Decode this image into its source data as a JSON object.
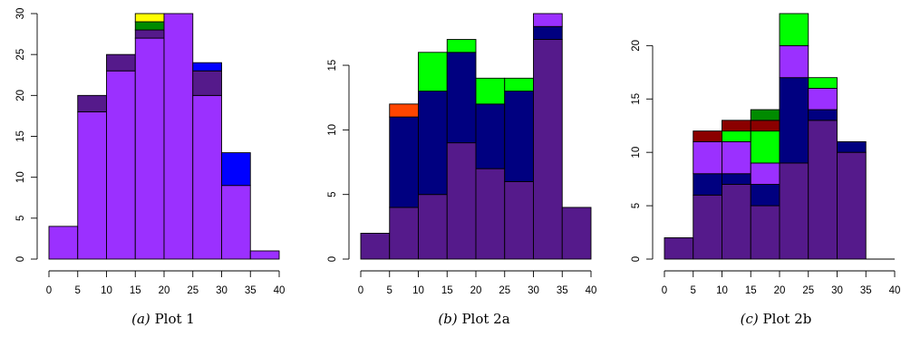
{
  "colors": {
    "purple": "#9B30FF",
    "indigo": "#551A8B",
    "blue": "#0000FF",
    "navy": "#000080",
    "green": "#00FF00",
    "darkgreen": "#008B00",
    "yellow": "#FFFF00",
    "orangered": "#FF4500",
    "darkred": "#8B0000",
    "axis": "#000000"
  },
  "chart_data": [
    {
      "type": "bar",
      "stacked": true,
      "caption_label": "(a)",
      "caption_text": "Plot 1",
      "x_ticks": [
        "0",
        "5",
        "10",
        "15",
        "20",
        "25",
        "30",
        "35",
        "40"
      ],
      "y_ticks": [
        "0",
        "5",
        "10",
        "15",
        "20",
        "25",
        "30"
      ],
      "xlim": [
        0,
        40
      ],
      "ylim": [
        0,
        30
      ],
      "bins": [
        {
          "x0": 0,
          "x1": 5,
          "segments": [
            {
              "value": 4,
              "color": "purple"
            }
          ]
        },
        {
          "x0": 5,
          "x1": 10,
          "segments": [
            {
              "value": 18,
              "color": "purple"
            },
            {
              "value": 2,
              "color": "indigo"
            }
          ]
        },
        {
          "x0": 10,
          "x1": 15,
          "segments": [
            {
              "value": 23,
              "color": "purple"
            },
            {
              "value": 2,
              "color": "indigo"
            }
          ]
        },
        {
          "x0": 15,
          "x1": 20,
          "segments": [
            {
              "value": 27,
              "color": "purple"
            },
            {
              "value": 1,
              "color": "indigo"
            },
            {
              "value": 1,
              "color": "darkgreen"
            },
            {
              "value": 1,
              "color": "yellow"
            }
          ]
        },
        {
          "x0": 20,
          "x1": 25,
          "segments": [
            {
              "value": 30,
              "color": "purple"
            }
          ]
        },
        {
          "x0": 25,
          "x1": 30,
          "segments": [
            {
              "value": 20,
              "color": "purple"
            },
            {
              "value": 3,
              "color": "indigo"
            },
            {
              "value": 1,
              "color": "blue"
            }
          ]
        },
        {
          "x0": 30,
          "x1": 35,
          "segments": [
            {
              "value": 9,
              "color": "purple"
            },
            {
              "value": 4,
              "color": "blue"
            }
          ]
        },
        {
          "x0": 35,
          "x1": 40,
          "segments": [
            {
              "value": 1,
              "color": "purple"
            }
          ]
        }
      ]
    },
    {
      "type": "bar",
      "stacked": true,
      "caption_label": "(b)",
      "caption_text": "Plot 2a",
      "x_ticks": [
        "0",
        "5",
        "10",
        "15",
        "20",
        "25",
        "30",
        "35",
        "40"
      ],
      "y_ticks": [
        "0",
        "5",
        "10",
        "15"
      ],
      "xlim": [
        0,
        40
      ],
      "ylim": [
        0,
        19
      ],
      "bins": [
        {
          "x0": 0,
          "x1": 5,
          "segments": [
            {
              "value": 2,
              "color": "indigo"
            }
          ]
        },
        {
          "x0": 5,
          "x1": 10,
          "segments": [
            {
              "value": 4,
              "color": "indigo"
            },
            {
              "value": 7,
              "color": "navy"
            },
            {
              "value": 1,
              "color": "orangered"
            }
          ]
        },
        {
          "x0": 10,
          "x1": 15,
          "segments": [
            {
              "value": 5,
              "color": "indigo"
            },
            {
              "value": 8,
              "color": "navy"
            },
            {
              "value": 3,
              "color": "green"
            }
          ]
        },
        {
          "x0": 15,
          "x1": 20,
          "segments": [
            {
              "value": 9,
              "color": "indigo"
            },
            {
              "value": 7,
              "color": "navy"
            },
            {
              "value": 1,
              "color": "green"
            }
          ]
        },
        {
          "x0": 20,
          "x1": 25,
          "segments": [
            {
              "value": 7,
              "color": "indigo"
            },
            {
              "value": 5,
              "color": "navy"
            },
            {
              "value": 2,
              "color": "green"
            }
          ]
        },
        {
          "x0": 25,
          "x1": 30,
          "segments": [
            {
              "value": 6,
              "color": "indigo"
            },
            {
              "value": 7,
              "color": "navy"
            },
            {
              "value": 1,
              "color": "green"
            }
          ]
        },
        {
          "x0": 30,
          "x1": 35,
          "segments": [
            {
              "value": 17,
              "color": "indigo"
            },
            {
              "value": 1,
              "color": "navy"
            },
            {
              "value": 1,
              "color": "purple"
            }
          ]
        },
        {
          "x0": 35,
          "x1": 40,
          "segments": [
            {
              "value": 4,
              "color": "indigo"
            }
          ]
        }
      ]
    },
    {
      "type": "bar",
      "stacked": true,
      "caption_label": "(c)",
      "caption_text": "Plot 2b",
      "x_ticks": [
        "0",
        "5",
        "10",
        "15",
        "20",
        "25",
        "30",
        "35",
        "40"
      ],
      "y_ticks": [
        "0",
        "5",
        "10",
        "15",
        "20"
      ],
      "xlim": [
        0,
        40
      ],
      "ylim": [
        0,
        23
      ],
      "bins": [
        {
          "x0": 0,
          "x1": 5,
          "segments": [
            {
              "value": 2,
              "color": "indigo"
            }
          ]
        },
        {
          "x0": 5,
          "x1": 10,
          "segments": [
            {
              "value": 6,
              "color": "indigo"
            },
            {
              "value": 2,
              "color": "navy"
            },
            {
              "value": 3,
              "color": "purple"
            },
            {
              "value": 1,
              "color": "darkred"
            }
          ]
        },
        {
          "x0": 10,
          "x1": 15,
          "segments": [
            {
              "value": 7,
              "color": "indigo"
            },
            {
              "value": 1,
              "color": "navy"
            },
            {
              "value": 3,
              "color": "purple"
            },
            {
              "value": 1,
              "color": "green"
            },
            {
              "value": 1,
              "color": "darkred"
            }
          ]
        },
        {
          "x0": 15,
          "x1": 20,
          "segments": [
            {
              "value": 5,
              "color": "indigo"
            },
            {
              "value": 2,
              "color": "navy"
            },
            {
              "value": 2,
              "color": "purple"
            },
            {
              "value": 3,
              "color": "green"
            },
            {
              "value": 1,
              "color": "darkred"
            },
            {
              "value": 1,
              "color": "darkgreen"
            }
          ]
        },
        {
          "x0": 20,
          "x1": 25,
          "segments": [
            {
              "value": 9,
              "color": "indigo"
            },
            {
              "value": 8,
              "color": "navy"
            },
            {
              "value": 3,
              "color": "purple"
            },
            {
              "value": 3,
              "color": "green"
            }
          ]
        },
        {
          "x0": 25,
          "x1": 30,
          "segments": [
            {
              "value": 13,
              "color": "indigo"
            },
            {
              "value": 1,
              "color": "navy"
            },
            {
              "value": 2,
              "color": "purple"
            },
            {
              "value": 1,
              "color": "green"
            }
          ]
        },
        {
          "x0": 30,
          "x1": 35,
          "segments": [
            {
              "value": 10,
              "color": "indigo"
            },
            {
              "value": 1,
              "color": "navy"
            }
          ]
        },
        {
          "x0": 35,
          "x1": 40,
          "segments": []
        }
      ]
    }
  ]
}
